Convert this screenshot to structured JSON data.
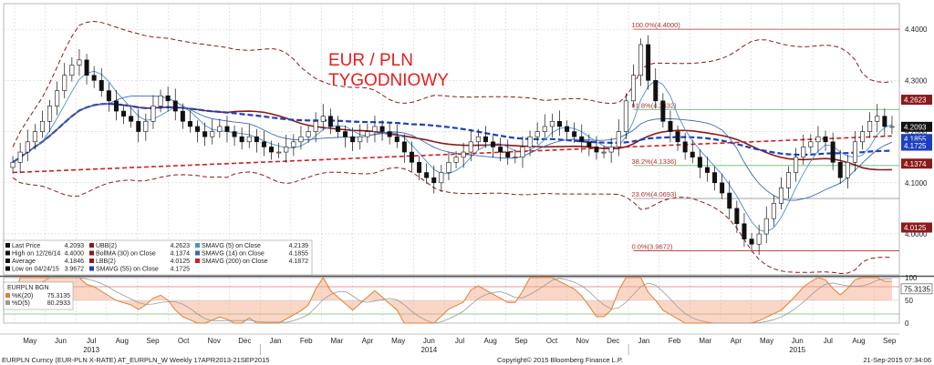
{
  "chart_data": {
    "type": "candlestick",
    "title": [
      "EUR / PLN",
      "TYGODNIOWY"
    ],
    "ylim": [
      3.92,
      4.45
    ],
    "y_ticks": [
      "4.4000",
      "4.3000",
      "4.2000",
      "4.1000",
      "4.0000"
    ],
    "months": [
      {
        "label": "May"
      },
      {
        "label": "Jun"
      },
      {
        "label": "Jul"
      },
      {
        "label": "Aug"
      },
      {
        "label": "Sep"
      },
      {
        "label": "Oct"
      },
      {
        "label": "Nov"
      },
      {
        "label": "Dec"
      },
      {
        "label": "Jan"
      },
      {
        "label": "Feb"
      },
      {
        "label": "Mar"
      },
      {
        "label": "Apr"
      },
      {
        "label": "May"
      },
      {
        "label": "Jun"
      },
      {
        "label": "Jul"
      },
      {
        "label": "Aug"
      },
      {
        "label": "Sep"
      },
      {
        "label": "Oct"
      },
      {
        "label": "Nov"
      },
      {
        "label": "Dec"
      },
      {
        "label": "Jan"
      },
      {
        "label": "Feb"
      },
      {
        "label": "Mar"
      },
      {
        "label": "Apr"
      },
      {
        "label": "May"
      },
      {
        "label": "Jun"
      },
      {
        "label": "Jul"
      },
      {
        "label": "Aug"
      },
      {
        "label": "Sep"
      }
    ],
    "years": [
      {
        "label": "2013"
      },
      {
        "label": "2014"
      },
      {
        "label": "2015"
      }
    ],
    "price_tags": [
      {
        "value": 4.2623,
        "label": "4.2623",
        "color": "#8b1a1a"
      },
      {
        "value": 4.2093,
        "label": "4.2093",
        "color": "#111111"
      },
      {
        "value": 4.1855,
        "label": "4.1855",
        "color": "#1c3fbf"
      },
      {
        "value": 4.1725,
        "label": "4.1725",
        "color": "#1c3fbf"
      },
      {
        "value": 4.1374,
        "label": "4.1374",
        "color": "#8b1a1a"
      },
      {
        "value": 4.0125,
        "label": "4.0125",
        "color": "#8b1a1a"
      }
    ],
    "fib_levels": [
      {
        "value": 4.4,
        "label": "100.0%(4.4000)",
        "color": "#b03030"
      },
      {
        "value": 4.2432,
        "label": "61.8%(4.2432)",
        "color": "#4caf50"
      },
      {
        "value": 4.1336,
        "label": "38.2%(4.1336)",
        "color": "#4caf50"
      },
      {
        "value": 4.0693,
        "label": "23.6%(4.0693)",
        "color": "#999999"
      },
      {
        "value": 3.9672,
        "label": "0.0%(3.9672)",
        "color": "#b03030"
      }
    ],
    "legend": {
      "col1": [
        {
          "label": "Last Price",
          "value": "4.2093"
        },
        {
          "label": "High on 12/26/14",
          "value": "4.4000"
        },
        {
          "label": "Average",
          "value": "4.1846"
        },
        {
          "label": "Low on 04/24/15",
          "value": "3.9672"
        }
      ],
      "col2": [
        {
          "label": "UBB(2)",
          "value": "4.2623"
        },
        {
          "label": "BollMA (30) on Close",
          "value": "4.1374"
        },
        {
          "label": "LBB(2)",
          "value": "4.0125"
        },
        {
          "label": "SMAVG (55) on Close",
          "value": "4.1725"
        }
      ],
      "col3": [
        {
          "label": "SMAVG (5) on Close",
          "value": "4.2139"
        },
        {
          "label": "SMAVG (14) on Close",
          "value": "4.1855"
        },
        {
          "label": "SMAVG (200) on Close",
          "value": "4.1872"
        }
      ]
    },
    "candles_close": [
      4.14,
      4.16,
      4.18,
      4.2,
      4.22,
      4.25,
      4.28,
      4.31,
      4.33,
      4.34,
      4.31,
      4.3,
      4.28,
      4.26,
      4.24,
      4.23,
      4.22,
      4.2,
      4.22,
      4.25,
      4.27,
      4.26,
      4.24,
      4.22,
      4.21,
      4.2,
      4.19,
      4.2,
      4.21,
      4.2,
      4.19,
      4.18,
      4.19,
      4.18,
      4.17,
      4.16,
      4.16,
      4.17,
      4.18,
      4.19,
      4.2,
      4.22,
      4.23,
      4.21,
      4.2,
      4.19,
      4.18,
      4.19,
      4.2,
      4.21,
      4.2,
      4.19,
      4.18,
      4.16,
      4.14,
      4.12,
      4.11,
      4.1,
      4.12,
      4.14,
      4.15,
      4.16,
      4.18,
      4.19,
      4.18,
      4.17,
      4.16,
      4.15,
      4.15,
      4.17,
      4.19,
      4.2,
      4.21,
      4.22,
      4.21,
      4.2,
      4.19,
      4.18,
      4.17,
      4.16,
      4.16,
      4.17,
      4.2,
      4.26,
      4.31,
      4.37,
      4.3,
      4.26,
      4.22,
      4.2,
      4.18,
      4.16,
      4.15,
      4.13,
      4.12,
      4.1,
      4.08,
      4.05,
      4.02,
      3.99,
      3.98,
      4.0,
      4.03,
      4.06,
      4.09,
      4.12,
      4.15,
      4.17,
      4.18,
      4.19,
      4.18,
      4.14,
      4.11,
      4.14,
      4.18,
      4.2,
      4.22,
      4.23,
      4.21,
      4.21
    ],
    "oscillator": {
      "label": "EURPLN BGN",
      "k_label": "%K(20)",
      "k_value": "75.3135",
      "d_label": "%D(5)",
      "d_value": "80.2933",
      "ylim": [
        0,
        100
      ],
      "y_ticks": [
        "100",
        "50",
        "0"
      ],
      "tag_value": "75.3135"
    },
    "footer": {
      "left": "EURPLN Curncy (EUR-PLN X-RATE) AT_EURPLN_W  Weekly 17APR2013-21SEP2015",
      "center": "Copyright© 2015 Bloomberg Finance L.P.",
      "right": "21-Sep-2015 07:34:06"
    }
  }
}
